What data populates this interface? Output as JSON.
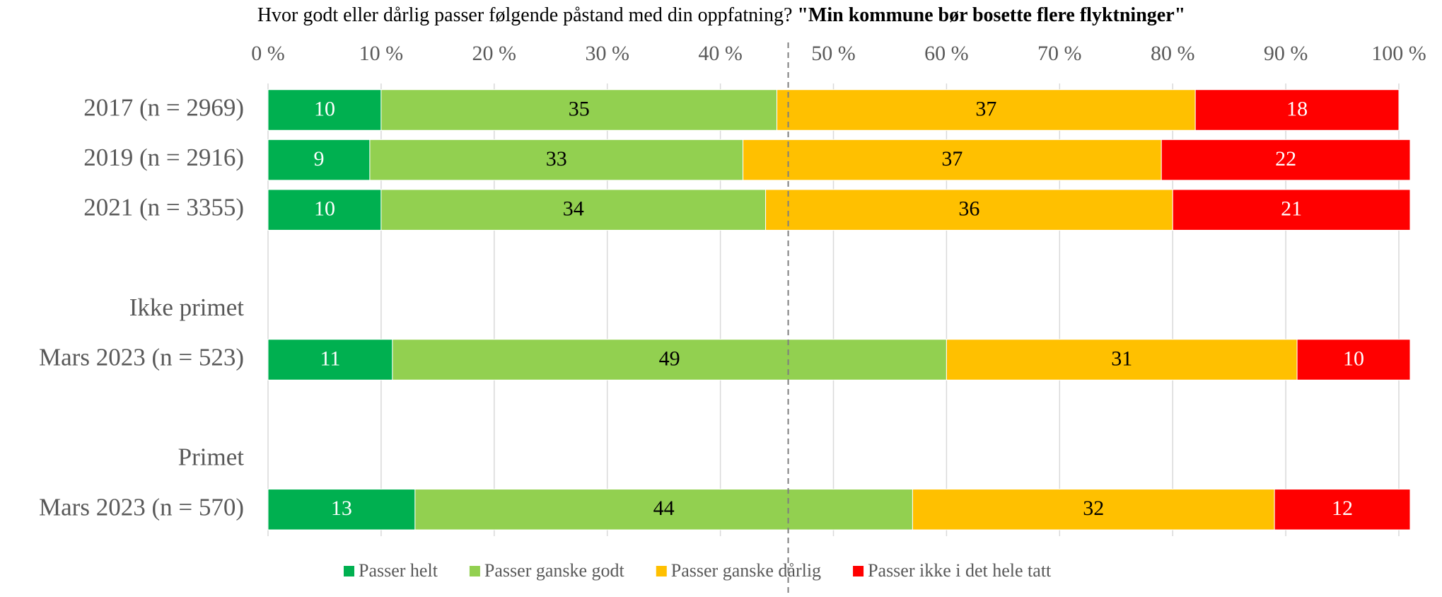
{
  "chart_data": {
    "type": "stacked-bar-horizontal",
    "title": "Hvor godt eller dårlig passer følgende påstand med din oppfatning?",
    "title_emphasis": "\"Min kommune bør bosette flere flyktninger\"",
    "categories": [
      "2017 (n = 2969)",
      "2019 (n = 2916)",
      "2021 (n = 3355)",
      null,
      "Ikke primet",
      "Mars 2023 (n = 523)",
      null,
      "Primet",
      "Mars 2023 (n = 570)"
    ],
    "series": [
      {
        "name": "Passer helt",
        "color": "#00b050",
        "label_color": "#ffffff",
        "values": [
          10,
          9,
          10,
          null,
          null,
          11,
          null,
          null,
          13
        ]
      },
      {
        "name": "Passer ganske godt",
        "color": "#92d050",
        "label_color": "#000000",
        "values": [
          35,
          33,
          34,
          null,
          null,
          49,
          null,
          null,
          44
        ]
      },
      {
        "name": "Passer ganske dårlig",
        "color": "#ffc000",
        "label_color": "#000000",
        "values": [
          37,
          37,
          36,
          null,
          null,
          31,
          null,
          null,
          32
        ]
      },
      {
        "name": "Passer ikke i det hele tatt",
        "color": "#ff0000",
        "label_color": "#ffffff",
        "values": [
          18,
          22,
          21,
          null,
          null,
          10,
          null,
          null,
          12
        ]
      }
    ],
    "xlim": [
      0,
      100
    ],
    "xticks": [
      {
        "value": 0,
        "label": "0 %"
      },
      {
        "value": 10,
        "label": "10 %"
      },
      {
        "value": 20,
        "label": "20 %"
      },
      {
        "value": 30,
        "label": "30 %"
      },
      {
        "value": 40,
        "label": "40 %"
      },
      {
        "value": 50,
        "label": "50 %"
      },
      {
        "value": 60,
        "label": "60 %"
      },
      {
        "value": 70,
        "label": "70 %"
      },
      {
        "value": 80,
        "label": "80 %"
      },
      {
        "value": 90,
        "label": "90 %"
      },
      {
        "value": 100,
        "label": "100 %"
      }
    ],
    "reference_x": 46,
    "grid": true,
    "legend": "bottom"
  }
}
